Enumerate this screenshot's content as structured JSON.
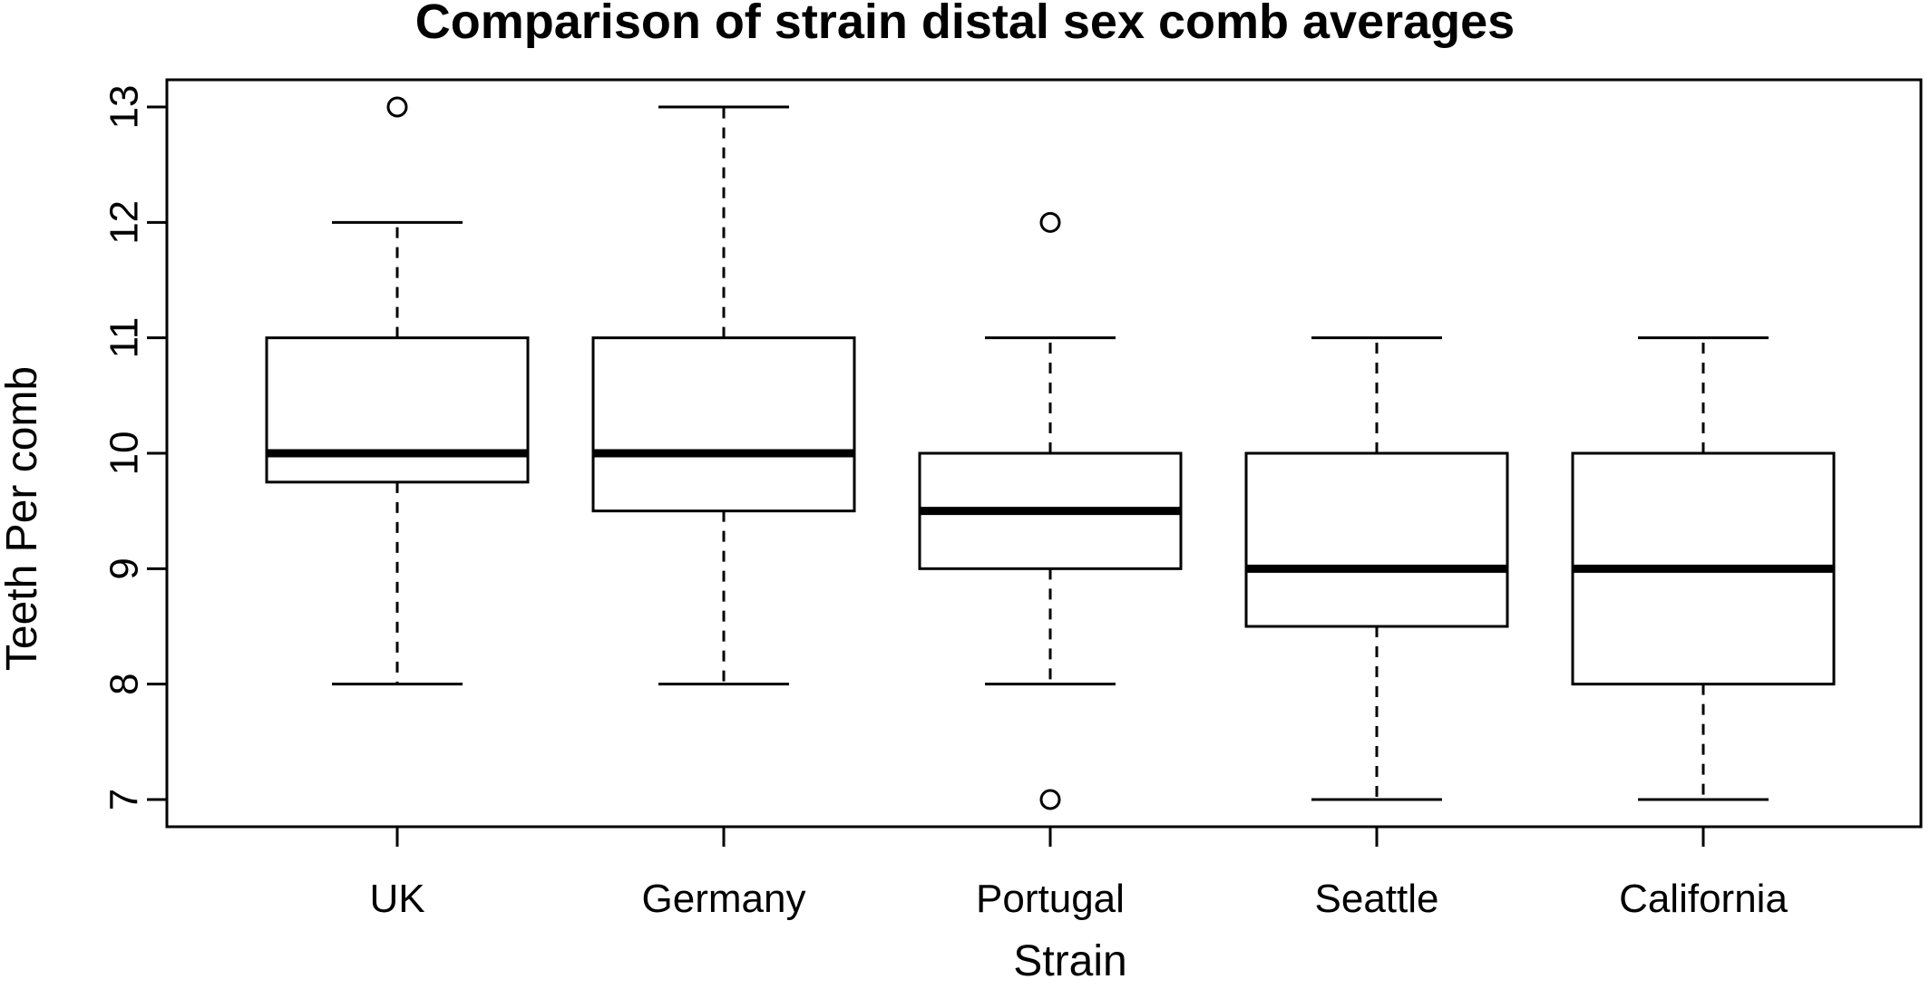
{
  "chart_data": {
    "type": "boxplot",
    "title": "Comparison of strain distal sex comb averages",
    "xlabel": "Strain",
    "ylabel": "Teeth Per comb",
    "ylim": [
      7,
      13
    ],
    "yticks": [
      7,
      8,
      9,
      10,
      11,
      12,
      13
    ],
    "grid": false,
    "legend": "none",
    "categories": [
      "UK",
      "Germany",
      "Portugal",
      "Seattle",
      "California"
    ],
    "boxes": [
      {
        "category": "UK",
        "whisker_low": 8,
        "q1": 9.75,
        "median": 10,
        "q3": 11,
        "whisker_high": 12,
        "outliers": [
          13
        ]
      },
      {
        "category": "Germany",
        "whisker_low": 8,
        "q1": 9.5,
        "median": 10,
        "q3": 11,
        "whisker_high": 13,
        "outliers": []
      },
      {
        "category": "Portugal",
        "whisker_low": 8,
        "q1": 9,
        "median": 9.5,
        "q3": 10,
        "whisker_high": 11,
        "outliers": [
          12,
          7
        ]
      },
      {
        "category": "Seattle",
        "whisker_low": 7,
        "q1": 8.5,
        "median": 9,
        "q3": 10,
        "whisker_high": 11,
        "outliers": []
      },
      {
        "category": "California",
        "whisker_low": 7,
        "q1": 8,
        "median": 9,
        "q3": 10,
        "whisker_high": 11,
        "outliers": []
      }
    ]
  }
}
